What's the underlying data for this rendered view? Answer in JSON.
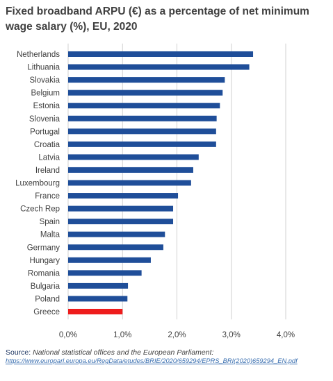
{
  "chart_data": {
    "type": "bar",
    "orientation": "horizontal",
    "title": "Fixed broadband ARPU (€) as a percentage of net minimum wage salary (%), EU, 2020",
    "categories": [
      "Netherlands",
      "Lithuania",
      "Slovakia",
      "Belgium",
      "Estonia",
      "Slovenia",
      "Portugal",
      "Croatia",
      "Latvia",
      "Ireland",
      "Luxembourg",
      "France",
      "Czech Rep",
      "Spain",
      "Malta",
      "Germany",
      "Hungary",
      "Romania",
      "Bulgaria",
      "Poland",
      "Greece"
    ],
    "values": [
      3.4,
      3.33,
      2.88,
      2.84,
      2.79,
      2.73,
      2.72,
      2.72,
      2.4,
      2.3,
      2.26,
      2.02,
      1.93,
      1.93,
      1.78,
      1.75,
      1.52,
      1.35,
      1.1,
      1.09,
      1.0
    ],
    "highlight_category": "Greece",
    "colors": {
      "bar": "#1f4e99",
      "highlight": "#ee1c1c",
      "grid": "#d0d0d0",
      "axis_text": "#404040"
    },
    "xlim": [
      0,
      4.0
    ],
    "xticks": [
      "0,0%",
      "1,0%",
      "2,0%",
      "3,0%",
      "4,0%"
    ],
    "grid": true
  },
  "source": {
    "label": "Source:",
    "text": "National statistical offices and the European Parliament:",
    "url": "https://www.europarl.europa.eu/RegData/etudes/BRIE/2020/659294/EPRS_BRI(2020)659294_EN.pdf"
  }
}
